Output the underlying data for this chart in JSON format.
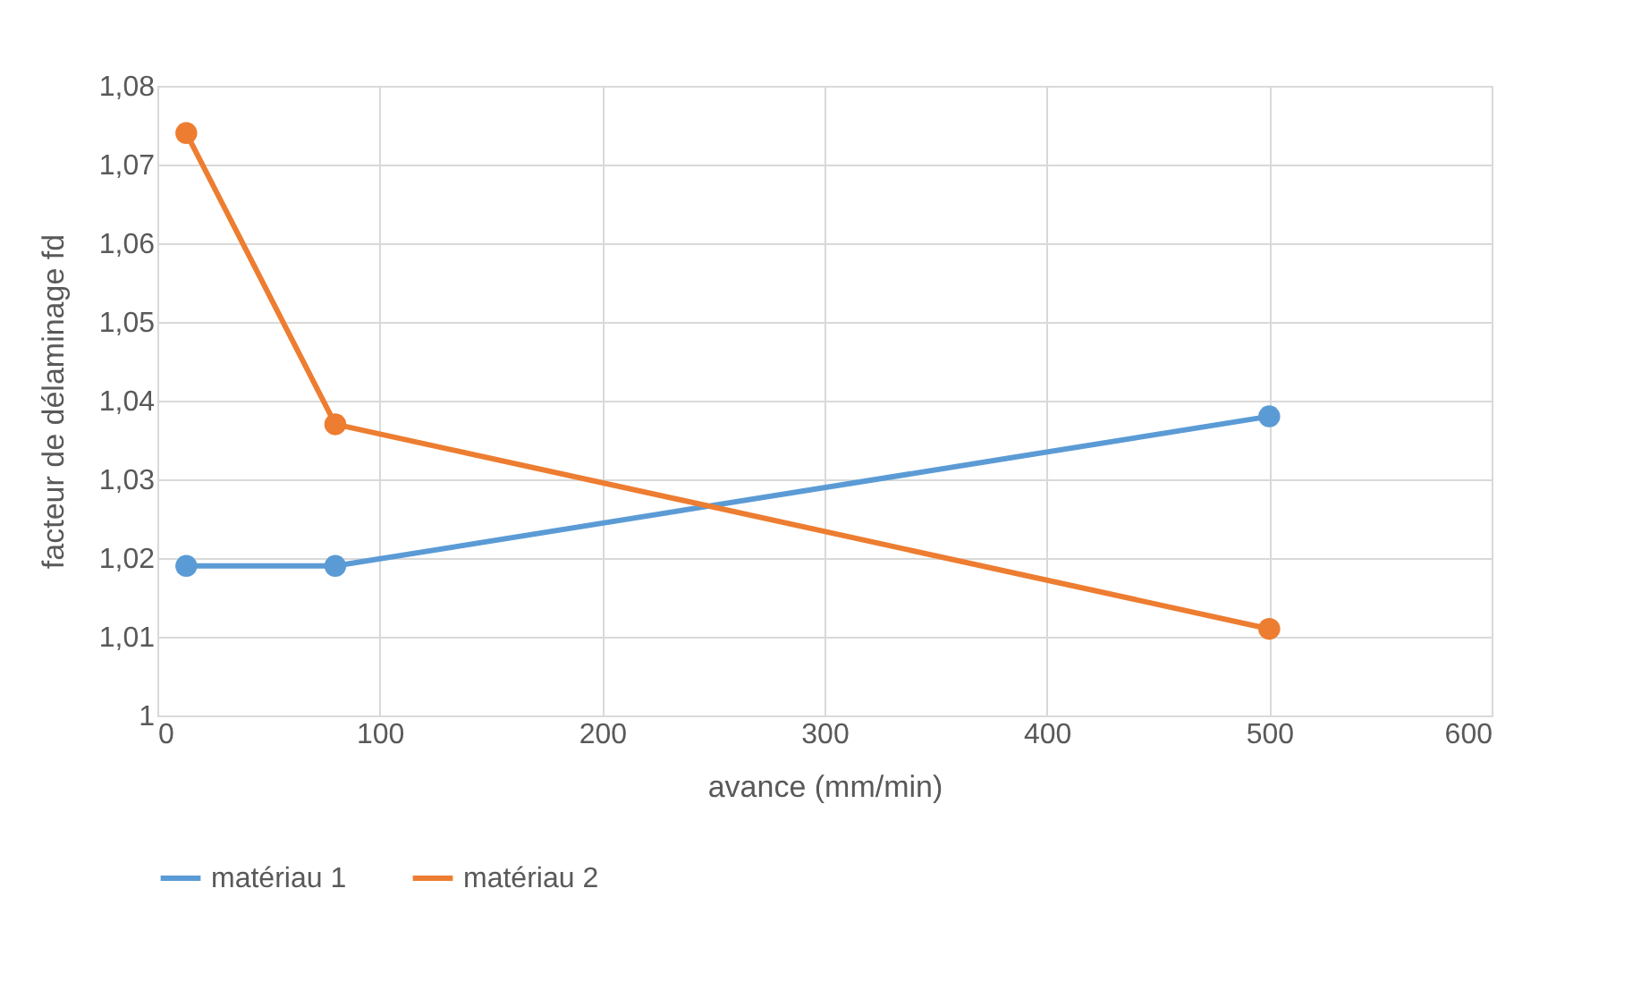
{
  "chart_data": {
    "type": "line",
    "xlabel": "avance (mm/min)",
    "ylabel": "facteur de délaminage fd",
    "series": [
      {
        "name": "matériau 1",
        "color": "#5b9bd5",
        "x": [
          13,
          80,
          500
        ],
        "values": [
          1.019,
          1.019,
          1.038
        ]
      },
      {
        "name": "matériau 2",
        "color": "#ed7d31",
        "x": [
          13,
          80,
          500
        ],
        "values": [
          1.074,
          1.037,
          1.011
        ]
      }
    ],
    "xlim": [
      0,
      600
    ],
    "xticks": [
      0,
      100,
      200,
      300,
      400,
      500,
      600
    ],
    "ylim": [
      1,
      1.08
    ],
    "yticks": [
      1,
      {
        "value": 1.01,
        "label": "1,01"
      },
      {
        "value": 1.02,
        "label": "1,02"
      },
      {
        "value": 1.03,
        "label": "1,03"
      },
      {
        "value": 1.04,
        "label": "1,04"
      },
      {
        "value": 1.05,
        "label": "1,05"
      },
      {
        "value": 1.06,
        "label": "1,06"
      },
      {
        "value": 1.07,
        "label": "1,07"
      },
      {
        "value": 1.08,
        "label": "1,08"
      }
    ],
    "grid": true,
    "legend": "bottom",
    "marker": "circle",
    "line_style": "solid"
  }
}
